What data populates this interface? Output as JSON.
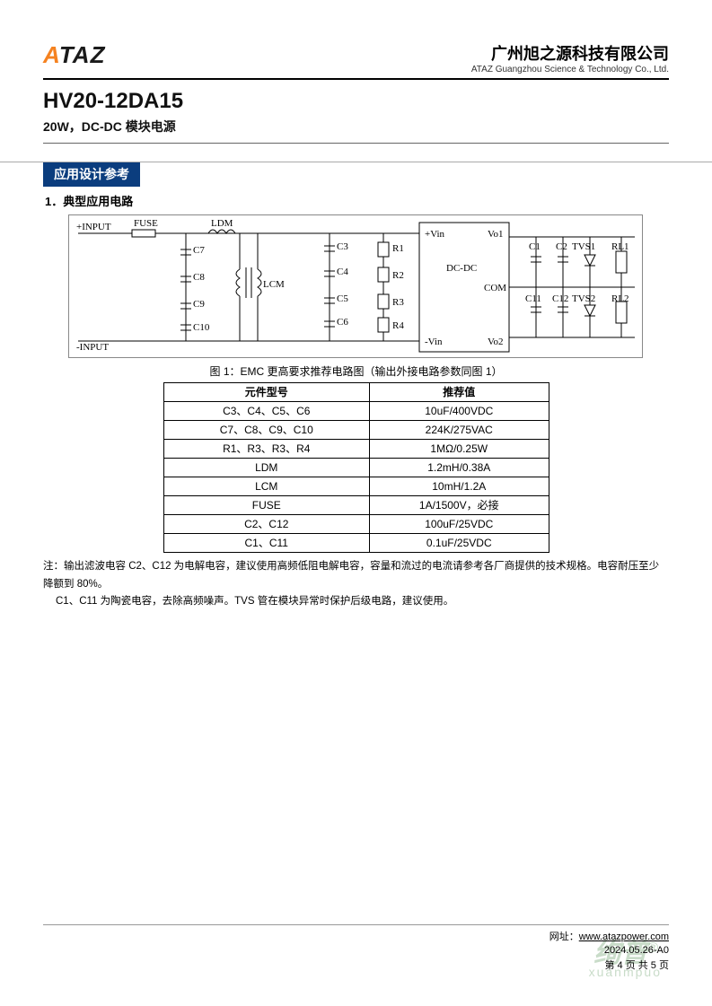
{
  "header": {
    "logo_prefix": "A",
    "logo_rest": "TAZ",
    "company_cn": "广州旭之源科技有限公司",
    "company_en": "ATAZ Guangzhou Science & Technology Co., Ltd."
  },
  "product": {
    "name": "HV20-12DA15",
    "desc": "20W，DC-DC 模块电源"
  },
  "section": {
    "tag": "应用设计参考",
    "sub": "1．典型应用电路"
  },
  "circuit": {
    "labels": {
      "input_p": "+INPUT",
      "input_n": "-INPUT",
      "fuse": "FUSE",
      "ldm": "LDM",
      "lcm": "LCM",
      "c7": "C7",
      "c8": "C8",
      "c9": "C9",
      "c10": "C10",
      "c3": "C3",
      "c4": "C4",
      "c5": "C5",
      "c6": "C6",
      "r1": "R1",
      "r2": "R2",
      "r3": "R3",
      "r4": "R4",
      "vin_p": "+Vin",
      "vin_n": "-Vin",
      "dcdc": "DC-DC",
      "vo1": "Vo1",
      "com": "COM",
      "vo2": "Vo2",
      "c1": "C1",
      "c2": "C2",
      "c11": "C11",
      "c12": "C12",
      "tvs1": "TVS1",
      "tvs2": "TVS2",
      "rl1": "RL1",
      "rl2": "RL2"
    }
  },
  "caption": "图 1：EMC 更高要求推荐电路图（输出外接电路参数同图 1）",
  "table": {
    "head": [
      "元件型号",
      "推荐值"
    ],
    "rows": [
      [
        "C3、C4、C5、C6",
        "10uF/400VDC"
      ],
      [
        "C7、C8、C9、C10",
        "224K/275VAC"
      ],
      [
        "R1、R3、R3、R4",
        "1MΩ/0.25W"
      ],
      [
        "LDM",
        "1.2mH/0.38A"
      ],
      [
        "LCM",
        "10mH/1.2A"
      ],
      [
        "FUSE",
        "1A/1500V，必接"
      ],
      [
        "C2、C12",
        "100uF/25VDC"
      ],
      [
        "C1、C11",
        "0.1uF/25VDC"
      ]
    ]
  },
  "note": {
    "line1": "注：输出滤波电容 C2、C12 为电解电容，建议使用高频低阻电解电容，容量和流过的电流请参考各厂商提供的技术规格。电容耐压至少降额到 80%。",
    "line2": "C1、C11 为陶瓷电容，去除高频噪声。TVS 管在模块异常时保护后级电路，建议使用。"
  },
  "footer": {
    "url_label": "网址：",
    "url": "www.atazpower.com",
    "date": "2024.05.26-A0",
    "page": "第 4 页 共 5 页"
  },
  "watermark": {
    "main": "绚普",
    "reg": "®",
    "sub": "xuanmpuo"
  },
  "colors": {
    "brand_orange": "#f58220",
    "brand_dark": "#1a1a1a",
    "section_bg": "#0b3d7e",
    "border": "#000000"
  }
}
